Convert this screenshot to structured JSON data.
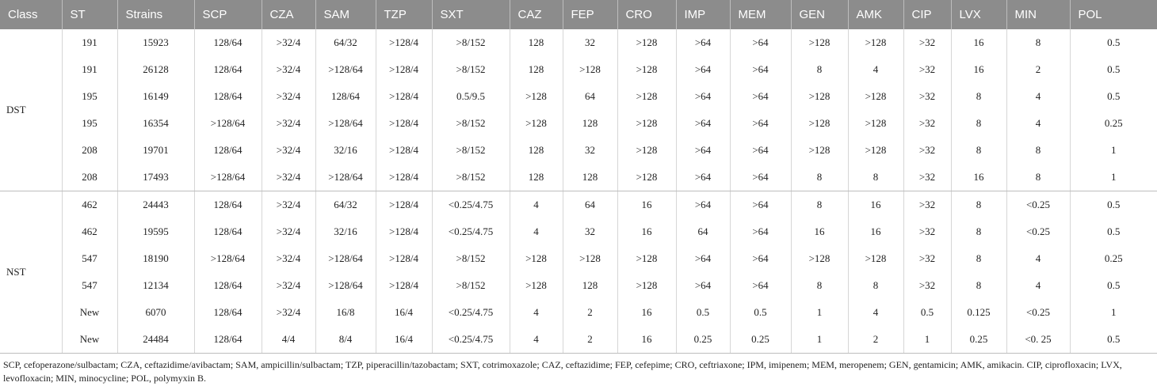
{
  "table": {
    "header": [
      "Class",
      "ST",
      "Strains",
      "SCP",
      "CZA",
      "SAM",
      "TZP",
      "SXT",
      "CAZ",
      "FEP",
      "CRO",
      "IMP",
      "MEM",
      "GEN",
      "AMK",
      "CIP",
      "LVX",
      "MIN",
      "POL"
    ],
    "groups": [
      {
        "class": "DST",
        "rows": [
          [
            "191",
            "15923",
            "128/64",
            ">32/4",
            "64/32",
            ">128/4",
            ">8/152",
            "128",
            "32",
            ">128",
            ">64",
            ">64",
            ">128",
            ">128",
            ">32",
            "16",
            "8",
            "0.5"
          ],
          [
            "191",
            "26128",
            "128/64",
            ">32/4",
            ">128/64",
            ">128/4",
            ">8/152",
            "128",
            ">128",
            ">128",
            ">64",
            ">64",
            "8",
            "4",
            ">32",
            "16",
            "2",
            "0.5"
          ],
          [
            "195",
            "16149",
            "128/64",
            ">32/4",
            "128/64",
            ">128/4",
            "0.5/9.5",
            ">128",
            "64",
            ">128",
            ">64",
            ">64",
            ">128",
            ">128",
            ">32",
            "8",
            "4",
            "0.5"
          ],
          [
            "195",
            "16354",
            ">128/64",
            ">32/4",
            ">128/64",
            ">128/4",
            ">8/152",
            ">128",
            "128",
            ">128",
            ">64",
            ">64",
            ">128",
            ">128",
            ">32",
            "8",
            "4",
            "0.25"
          ],
          [
            "208",
            "19701",
            "128/64",
            ">32/4",
            "32/16",
            ">128/4",
            ">8/152",
            "128",
            "32",
            ">128",
            ">64",
            ">64",
            ">128",
            ">128",
            ">32",
            "8",
            "8",
            "1"
          ],
          [
            "208",
            "17493",
            ">128/64",
            ">32/4",
            ">128/64",
            ">128/4",
            ">8/152",
            "128",
            "128",
            ">128",
            ">64",
            ">64",
            "8",
            "8",
            ">32",
            "16",
            "8",
            "1"
          ]
        ]
      },
      {
        "class": "NST",
        "rows": [
          [
            "462",
            "24443",
            "128/64",
            ">32/4",
            "64/32",
            ">128/4",
            "<0.25/4.75",
            "4",
            "64",
            "16",
            ">64",
            ">64",
            "8",
            "16",
            ">32",
            "8",
            "<0.25",
            "0.5"
          ],
          [
            "462",
            "19595",
            "128/64",
            ">32/4",
            "32/16",
            ">128/4",
            "<0.25/4.75",
            "4",
            "32",
            "16",
            "64",
            ">64",
            "16",
            "16",
            ">32",
            "8",
            "<0.25",
            "0.5"
          ],
          [
            "547",
            "18190",
            ">128/64",
            ">32/4",
            ">128/64",
            ">128/4",
            ">8/152",
            ">128",
            ">128",
            ">128",
            ">64",
            ">64",
            ">128",
            ">128",
            ">32",
            "8",
            "4",
            "0.25"
          ],
          [
            "547",
            "12134",
            "128/64",
            ">32/4",
            ">128/64",
            ">128/4",
            ">8/152",
            ">128",
            "128",
            ">128",
            ">64",
            ">64",
            "8",
            "8",
            ">32",
            "8",
            "4",
            "0.5"
          ],
          [
            "New",
            "6070",
            "128/64",
            ">32/4",
            "16/8",
            "16/4",
            "<0.25/4.75",
            "4",
            "2",
            "16",
            "0.5",
            "0.5",
            "1",
            "4",
            "0.5",
            "0.125",
            "<0.25",
            "1"
          ],
          [
            "New",
            "24484",
            "128/64",
            "4/4",
            "8/4",
            "16/4",
            "<0.25/4.75",
            "4",
            "2",
            "16",
            "0.25",
            "0.25",
            "1",
            "2",
            "1",
            "0.25",
            "<0. 25",
            "0.5"
          ]
        ]
      }
    ],
    "footnote": "SCP, cefoperazone/sulbactam; CZA, ceftazidime/avibactam; SAM, ampicillin/sulbactam; TZP, piperacillin/tazobactam; SXT, cotrimoxazole; CAZ, ceftazidime; FEP, cefepime; CRO, ceftriaxone; IPM, imipenem; MEM, meropenem; GEN, gentamicin; AMK, amikacin. CIP, ciprofloxacin; LVX, levofloxacin; MIN, minocycline; POL, polymyxin B."
  }
}
